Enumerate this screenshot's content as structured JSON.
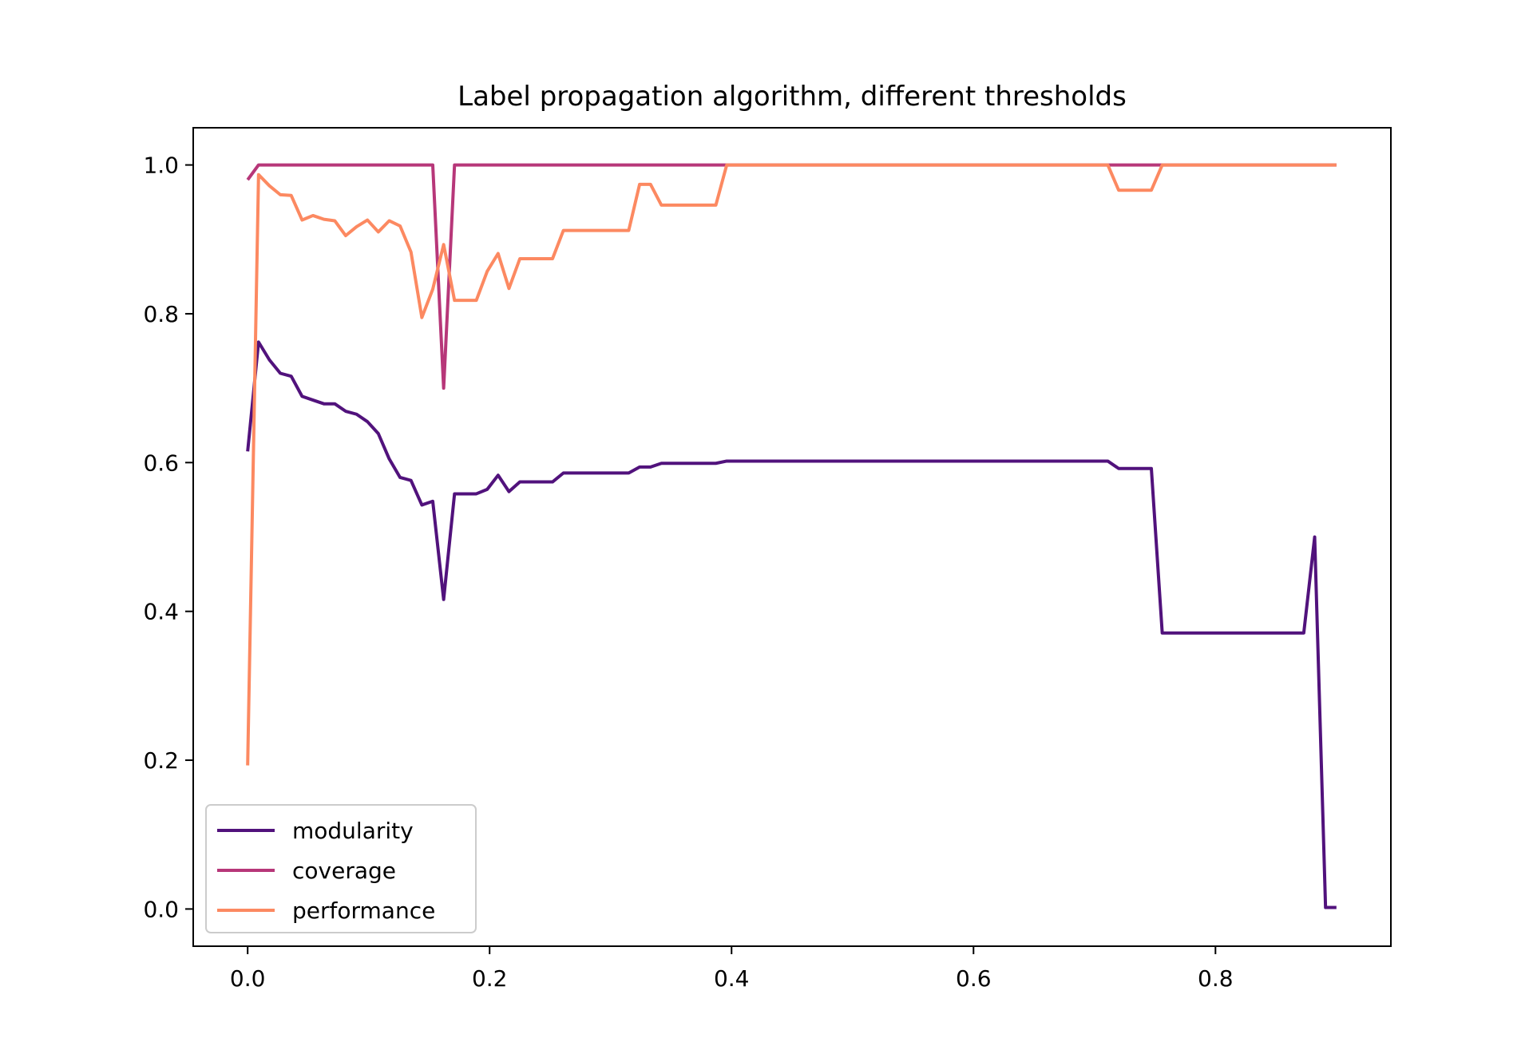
{
  "chart_data": {
    "type": "line",
    "title": "Label propagation algorithm, different thresholds",
    "xlabel": "",
    "ylabel": "",
    "xlim": [
      -0.045,
      0.945
    ],
    "ylim": [
      -0.05,
      1.05
    ],
    "xticks": [
      0.0,
      0.2,
      0.4,
      0.6,
      0.8
    ],
    "xtick_labels": [
      "0.0",
      "0.2",
      "0.4",
      "0.6",
      "0.8"
    ],
    "yticks": [
      0.0,
      0.2,
      0.4,
      0.6,
      0.8,
      1.0
    ],
    "ytick_labels": [
      "0.0",
      "0.2",
      "0.4",
      "0.6",
      "0.8",
      "1.0"
    ],
    "grid": false,
    "legend_position": "lower-left",
    "series": [
      {
        "name": "modularity",
        "color": "#51127c",
        "points": [
          [
            0.0,
            0.615
          ],
          [
            0.009,
            0.762
          ],
          [
            0.018,
            0.738
          ],
          [
            0.027,
            0.72
          ],
          [
            0.036,
            0.716
          ],
          [
            0.045,
            0.689
          ],
          [
            0.054,
            0.684
          ],
          [
            0.063,
            0.679
          ],
          [
            0.072,
            0.679
          ],
          [
            0.081,
            0.669
          ],
          [
            0.09,
            0.665
          ],
          [
            0.099,
            0.655
          ],
          [
            0.108,
            0.639
          ],
          [
            0.117,
            0.605
          ],
          [
            0.126,
            0.58
          ],
          [
            0.135,
            0.576
          ],
          [
            0.144,
            0.543
          ],
          [
            0.153,
            0.548
          ],
          [
            0.162,
            0.416
          ],
          [
            0.171,
            0.558
          ],
          [
            0.18,
            0.558
          ],
          [
            0.189,
            0.558
          ],
          [
            0.198,
            0.564
          ],
          [
            0.207,
            0.583
          ],
          [
            0.216,
            0.561
          ],
          [
            0.225,
            0.574
          ],
          [
            0.234,
            0.574
          ],
          [
            0.243,
            0.574
          ],
          [
            0.252,
            0.574
          ],
          [
            0.261,
            0.586
          ],
          [
            0.27,
            0.586
          ],
          [
            0.279,
            0.586
          ],
          [
            0.288,
            0.586
          ],
          [
            0.297,
            0.586
          ],
          [
            0.306,
            0.586
          ],
          [
            0.315,
            0.586
          ],
          [
            0.324,
            0.594
          ],
          [
            0.333,
            0.594
          ],
          [
            0.342,
            0.599
          ],
          [
            0.351,
            0.599
          ],
          [
            0.36,
            0.599
          ],
          [
            0.369,
            0.599
          ],
          [
            0.378,
            0.599
          ],
          [
            0.387,
            0.599
          ],
          [
            0.396,
            0.602
          ],
          [
            0.405,
            0.602
          ],
          [
            0.5,
            0.602
          ],
          [
            0.6,
            0.602
          ],
          [
            0.7,
            0.602
          ],
          [
            0.711,
            0.602
          ],
          [
            0.72,
            0.592
          ],
          [
            0.729,
            0.592
          ],
          [
            0.738,
            0.592
          ],
          [
            0.747,
            0.592
          ],
          [
            0.756,
            0.371
          ],
          [
            0.765,
            0.371
          ],
          [
            0.8,
            0.371
          ],
          [
            0.85,
            0.371
          ],
          [
            0.873,
            0.371
          ],
          [
            0.882,
            0.5
          ],
          [
            0.891,
            0.002
          ],
          [
            0.9,
            0.002
          ]
        ]
      },
      {
        "name": "coverage",
        "color": "#b73779",
        "points": [
          [
            0.0,
            0.98
          ],
          [
            0.009,
            1.0
          ],
          [
            0.05,
            1.0
          ],
          [
            0.1,
            1.0
          ],
          [
            0.153,
            1.0
          ],
          [
            0.162,
            0.7
          ],
          [
            0.171,
            1.0
          ],
          [
            0.2,
            1.0
          ],
          [
            0.3,
            1.0
          ],
          [
            0.4,
            1.0
          ],
          [
            0.5,
            1.0
          ],
          [
            0.6,
            1.0
          ],
          [
            0.7,
            1.0
          ],
          [
            0.8,
            1.0
          ],
          [
            0.9,
            1.0
          ]
        ]
      },
      {
        "name": "performance",
        "color": "#fc8961",
        "points": [
          [
            0.0,
            0.193
          ],
          [
            0.009,
            0.987
          ],
          [
            0.018,
            0.972
          ],
          [
            0.027,
            0.96
          ],
          [
            0.036,
            0.959
          ],
          [
            0.045,
            0.926
          ],
          [
            0.054,
            0.932
          ],
          [
            0.063,
            0.927
          ],
          [
            0.072,
            0.925
          ],
          [
            0.081,
            0.905
          ],
          [
            0.09,
            0.917
          ],
          [
            0.099,
            0.926
          ],
          [
            0.108,
            0.91
          ],
          [
            0.117,
            0.925
          ],
          [
            0.126,
            0.918
          ],
          [
            0.135,
            0.883
          ],
          [
            0.144,
            0.795
          ],
          [
            0.153,
            0.833
          ],
          [
            0.162,
            0.893
          ],
          [
            0.171,
            0.818
          ],
          [
            0.18,
            0.818
          ],
          [
            0.189,
            0.818
          ],
          [
            0.198,
            0.857
          ],
          [
            0.207,
            0.881
          ],
          [
            0.216,
            0.834
          ],
          [
            0.225,
            0.874
          ],
          [
            0.234,
            0.874
          ],
          [
            0.243,
            0.874
          ],
          [
            0.252,
            0.874
          ],
          [
            0.261,
            0.912
          ],
          [
            0.27,
            0.912
          ],
          [
            0.279,
            0.912
          ],
          [
            0.288,
            0.912
          ],
          [
            0.297,
            0.912
          ],
          [
            0.306,
            0.912
          ],
          [
            0.315,
            0.912
          ],
          [
            0.324,
            0.974
          ],
          [
            0.333,
            0.974
          ],
          [
            0.342,
            0.946
          ],
          [
            0.351,
            0.946
          ],
          [
            0.36,
            0.946
          ],
          [
            0.369,
            0.946
          ],
          [
            0.378,
            0.946
          ],
          [
            0.387,
            0.946
          ],
          [
            0.396,
            1.0
          ],
          [
            0.405,
            1.0
          ],
          [
            0.5,
            1.0
          ],
          [
            0.6,
            1.0
          ],
          [
            0.7,
            1.0
          ],
          [
            0.711,
            1.0
          ],
          [
            0.72,
            0.966
          ],
          [
            0.729,
            0.966
          ],
          [
            0.738,
            0.966
          ],
          [
            0.747,
            0.966
          ],
          [
            0.756,
            1.0
          ],
          [
            0.8,
            1.0
          ],
          [
            0.85,
            1.0
          ],
          [
            0.9,
            1.0
          ]
        ]
      }
    ]
  }
}
